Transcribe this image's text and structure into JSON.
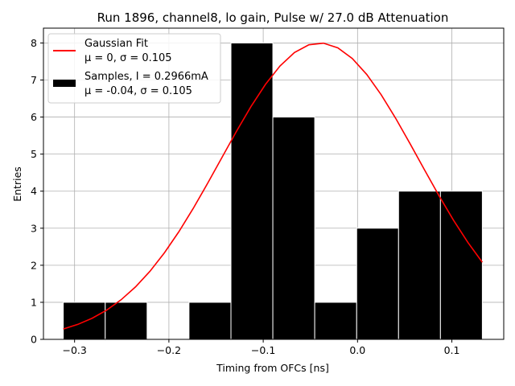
{
  "chart_data": {
    "type": "bar",
    "title": "Run 1896, channel8, lo gain, Pulse w/ 27.0 dB Attenuation",
    "xlabel": "Timing from OFCs [ns]",
    "ylabel": "Entries",
    "xlim": [
      -0.333,
      0.155
    ],
    "ylim": [
      0,
      8.4
    ],
    "xticks": [
      -0.3,
      -0.2,
      -0.1,
      0.0,
      0.1
    ],
    "xtick_labels": [
      "−0.3",
      "−0.2",
      "−0.1",
      "0.0",
      "0.1"
    ],
    "yticks": [
      0,
      1,
      2,
      3,
      4,
      5,
      6,
      7,
      8
    ],
    "ytick_labels": [
      "0",
      "1",
      "2",
      "3",
      "4",
      "5",
      "6",
      "7",
      "8"
    ],
    "grid": true,
    "legend_position": "upper-left",
    "histogram": {
      "name": "Samples, I = 0.2966mA",
      "stats": "μ = -0.04, σ = 0.105",
      "color": "#000000",
      "bin_edges": [
        -0.312,
        -0.2675,
        -0.2231,
        -0.1787,
        -0.1342,
        -0.0898,
        -0.0454,
        -0.0009,
        0.0435,
        0.0879,
        0.1323
      ],
      "counts": [
        1,
        1,
        0,
        1,
        8,
        6,
        1,
        3,
        4,
        4
      ]
    },
    "fit": {
      "name": "Gaussian Fit",
      "stats": "μ = 0, σ = 0.105",
      "color": "#ff0000",
      "mu": -0.04,
      "sigma": 0.105,
      "amplitude": 8.0,
      "x_range": [
        -0.312,
        0.1323
      ],
      "n_points": 30
    }
  }
}
